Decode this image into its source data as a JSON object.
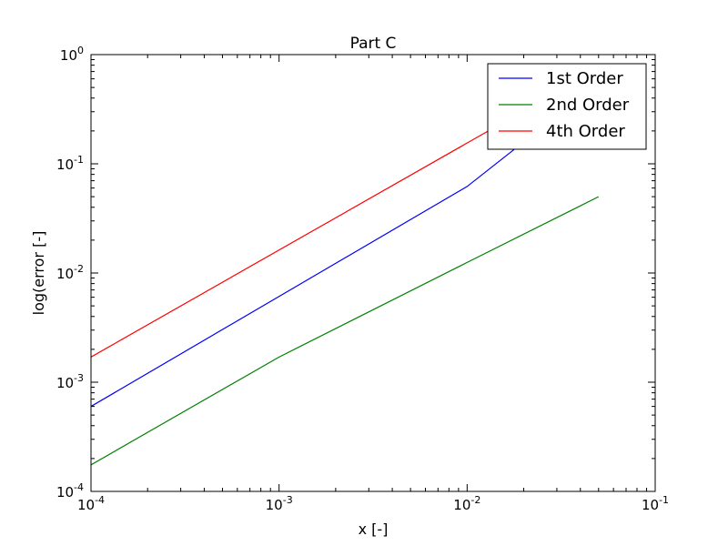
{
  "chart_data": {
    "type": "line",
    "title": "Part C",
    "xlabel": "x [-]",
    "ylabel": "log(error [-]",
    "xscale": "log",
    "yscale": "log",
    "xlim": [
      0.0001,
      0.1
    ],
    "ylim": [
      0.0001,
      1
    ],
    "x_ticks": [
      {
        "value": 0.0001,
        "base": "10",
        "exp": "-4"
      },
      {
        "value": 0.001,
        "base": "10",
        "exp": "-3"
      },
      {
        "value": 0.01,
        "base": "10",
        "exp": "-2"
      },
      {
        "value": 0.1,
        "base": "10",
        "exp": "-1"
      }
    ],
    "y_ticks": [
      {
        "value": 0.0001,
        "base": "10",
        "exp": "-4"
      },
      {
        "value": 0.001,
        "base": "10",
        "exp": "-3"
      },
      {
        "value": 0.01,
        "base": "10",
        "exp": "-2"
      },
      {
        "value": 0.1,
        "base": "10",
        "exp": "-1"
      },
      {
        "value": 1,
        "base": "10",
        "exp": "0"
      }
    ],
    "grid": false,
    "legend_position": "top-right",
    "series": [
      {
        "name": "1st Order",
        "color": "#0000ff",
        "points": [
          [
            0.0001,
            0.0006
          ],
          [
            0.01,
            0.062
          ],
          [
            0.05,
            0.55
          ]
        ]
      },
      {
        "name": "2nd Order",
        "color": "#008000",
        "points": [
          [
            0.0001,
            0.000175
          ],
          [
            0.001,
            0.0017
          ],
          [
            0.01,
            0.0125
          ],
          [
            0.05,
            0.05
          ]
        ]
      },
      {
        "name": "4th Order",
        "color": "#ff0000",
        "points": [
          [
            0.0001,
            0.0017
          ],
          [
            0.01,
            0.155
          ],
          [
            0.05,
            0.75
          ]
        ]
      }
    ]
  }
}
